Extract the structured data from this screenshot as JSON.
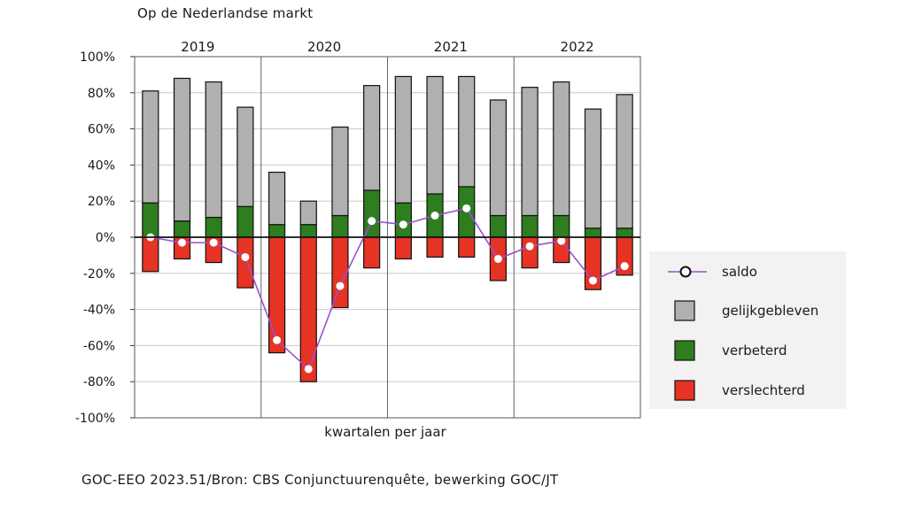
{
  "title": "Op de Nederlandse markt",
  "source": "GOC-EEO 2023.51/Bron: CBS Conjunctuurenquête, bewerking GOC/JT",
  "chart_data": {
    "type": "bar",
    "xlabel": "kwartalen per jaar",
    "ylim": [
      -100,
      100
    ],
    "yticks": [
      "100%",
      "80%",
      "60%",
      "40%",
      "20%",
      "0%",
      "-20%",
      "-40%",
      "-60%",
      "-80%",
      "-100%"
    ],
    "ytick_values": [
      100,
      80,
      60,
      40,
      20,
      0,
      -20,
      -40,
      -60,
      -80,
      -100
    ],
    "groups": [
      "2019",
      "2020",
      "2021",
      "2022"
    ],
    "quarters_per_group": 4,
    "legend": [
      "saldo",
      "gelijkgebleven",
      "verbeterd",
      "verslechterd"
    ],
    "colors": {
      "gelijkgebleven": "#b0b0b0",
      "verbeterd": "#2e7d1f",
      "verslechterd": "#e63323",
      "saldo": "#9b4fd1"
    },
    "series": [
      {
        "name": "verbeterd",
        "values": [
          19,
          9,
          11,
          17,
          7,
          7,
          12,
          26,
          19,
          24,
          28,
          12,
          12,
          12,
          5,
          5
        ]
      },
      {
        "name": "gelijkgebleven",
        "values": [
          62,
          79,
          75,
          55,
          29,
          13,
          49,
          58,
          70,
          65,
          61,
          64,
          71,
          74,
          66,
          74
        ]
      },
      {
        "name": "verslechterd",
        "values": [
          -19,
          -12,
          -14,
          -28,
          -64,
          -80,
          -39,
          -17,
          -12,
          -11,
          -11,
          -24,
          -17,
          -14,
          -29,
          -21
        ]
      },
      {
        "name": "saldo",
        "values": [
          0,
          -3,
          -3,
          -11,
          -57,
          -73,
          -27,
          9,
          7,
          12,
          16,
          -12,
          -5,
          -2,
          -24,
          -16
        ]
      }
    ]
  }
}
